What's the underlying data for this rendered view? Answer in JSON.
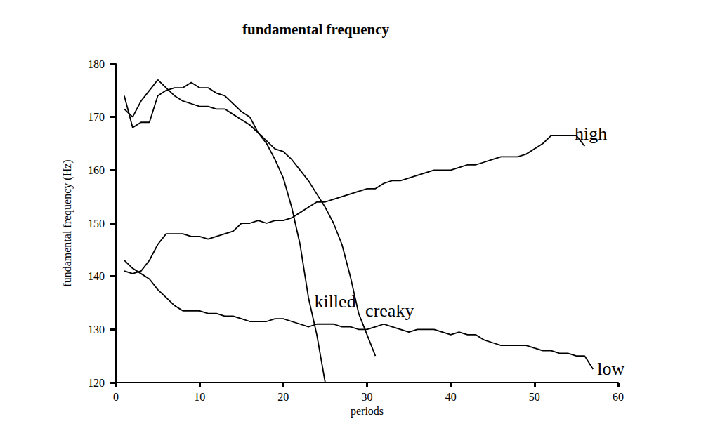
{
  "chart_data": {
    "type": "line",
    "title": "fundamental frequency",
    "x_label": "periods",
    "y_label": "fundamental frequency (Hz)",
    "xlim": [
      0,
      60
    ],
    "xticks": [
      0,
      10,
      20,
      30,
      40,
      50,
      60
    ],
    "ylim": [
      120,
      180
    ],
    "yticks": [
      120,
      130,
      140,
      150,
      160,
      170,
      180
    ],
    "grid": false,
    "color": "#000000",
    "series": [
      {
        "name": "high",
        "x": [
          1,
          2,
          3,
          4,
          5,
          6,
          7,
          8,
          9,
          10,
          11,
          12,
          13,
          14,
          15,
          16,
          17,
          18,
          19,
          20,
          21,
          22,
          23,
          24,
          25,
          26,
          27,
          28,
          29,
          30,
          31,
          32,
          33,
          34,
          35,
          36,
          37,
          38,
          39,
          40,
          41,
          42,
          43,
          44,
          45,
          46,
          47,
          48,
          49,
          50,
          51,
          52,
          53,
          54,
          55,
          56
        ],
        "values": [
          141,
          140.5,
          141,
          143,
          146,
          148,
          148,
          148,
          147.5,
          147.5,
          147,
          147.5,
          148,
          148.5,
          150,
          150,
          150.5,
          150,
          150.5,
          150.5,
          151,
          152,
          153,
          154,
          154,
          154.5,
          155,
          155.5,
          156,
          156.5,
          156.5,
          157.5,
          158,
          158,
          158.5,
          159,
          159.5,
          160,
          160,
          160,
          160.5,
          161,
          161,
          161.5,
          162,
          162.5,
          162.5,
          162.5,
          163,
          164,
          165,
          166.5,
          166.5,
          166.5,
          166.5,
          164.5
        ]
      },
      {
        "name": "low",
        "x": [
          1,
          2,
          3,
          4,
          5,
          6,
          7,
          8,
          9,
          10,
          11,
          12,
          13,
          14,
          15,
          16,
          17,
          18,
          19,
          20,
          21,
          22,
          23,
          24,
          25,
          26,
          27,
          28,
          29,
          30,
          31,
          32,
          33,
          34,
          35,
          36,
          37,
          38,
          39,
          40,
          41,
          42,
          43,
          44,
          45,
          46,
          47,
          48,
          49,
          50,
          51,
          52,
          53,
          54,
          55,
          56,
          57
        ],
        "values": [
          143,
          141.5,
          140.5,
          139.5,
          137.5,
          136,
          134.5,
          133.5,
          133.5,
          133.5,
          133,
          133,
          132.5,
          132.5,
          132,
          131.5,
          131.5,
          131.5,
          132,
          132,
          131.5,
          131,
          130.5,
          131,
          131,
          131,
          130.5,
          130.5,
          130,
          130,
          130.5,
          131,
          130.5,
          130,
          129.5,
          130,
          130,
          130,
          129.5,
          129,
          129.5,
          129,
          129,
          128,
          127.5,
          127,
          127,
          127,
          127,
          126.5,
          126,
          126,
          125.5,
          125.5,
          125,
          125,
          122.5
        ]
      },
      {
        "name": "killed",
        "x": [
          1,
          2,
          3,
          4,
          5,
          6,
          7,
          8,
          9,
          10,
          11,
          12,
          13,
          14,
          15,
          16,
          17,
          18,
          19,
          20,
          21,
          22,
          23,
          24,
          25
        ],
        "values": [
          171.5,
          170,
          173,
          175,
          177,
          175.5,
          174,
          173,
          172.5,
          172,
          172,
          171.5,
          171.5,
          170.5,
          169.5,
          168.5,
          167,
          165,
          162,
          158.5,
          153,
          146,
          136,
          129,
          120
        ]
      },
      {
        "name": "creaky",
        "x": [
          1,
          2,
          3,
          4,
          5,
          6,
          7,
          8,
          9,
          10,
          11,
          12,
          13,
          14,
          15,
          16,
          17,
          18,
          19,
          20,
          21,
          22,
          23,
          24,
          25,
          26,
          27,
          28,
          29,
          30,
          31
        ],
        "values": [
          174,
          168,
          169,
          169,
          174,
          175,
          175.5,
          175.5,
          176.5,
          175.5,
          175.5,
          174.5,
          174,
          172.5,
          171,
          170,
          167,
          165.5,
          164,
          163.5,
          162,
          160,
          158,
          155.5,
          153,
          150,
          146,
          140,
          133,
          129,
          125
        ]
      }
    ],
    "annotations": [
      {
        "text": "high",
        "x": 54.8,
        "y": 166.9
      },
      {
        "text": "low",
        "x": 57.5,
        "y": 122.6
      },
      {
        "text": "killed",
        "x": 23.7,
        "y": 135.2
      },
      {
        "text": "creaky",
        "x": 29.8,
        "y": 133.6
      }
    ]
  }
}
